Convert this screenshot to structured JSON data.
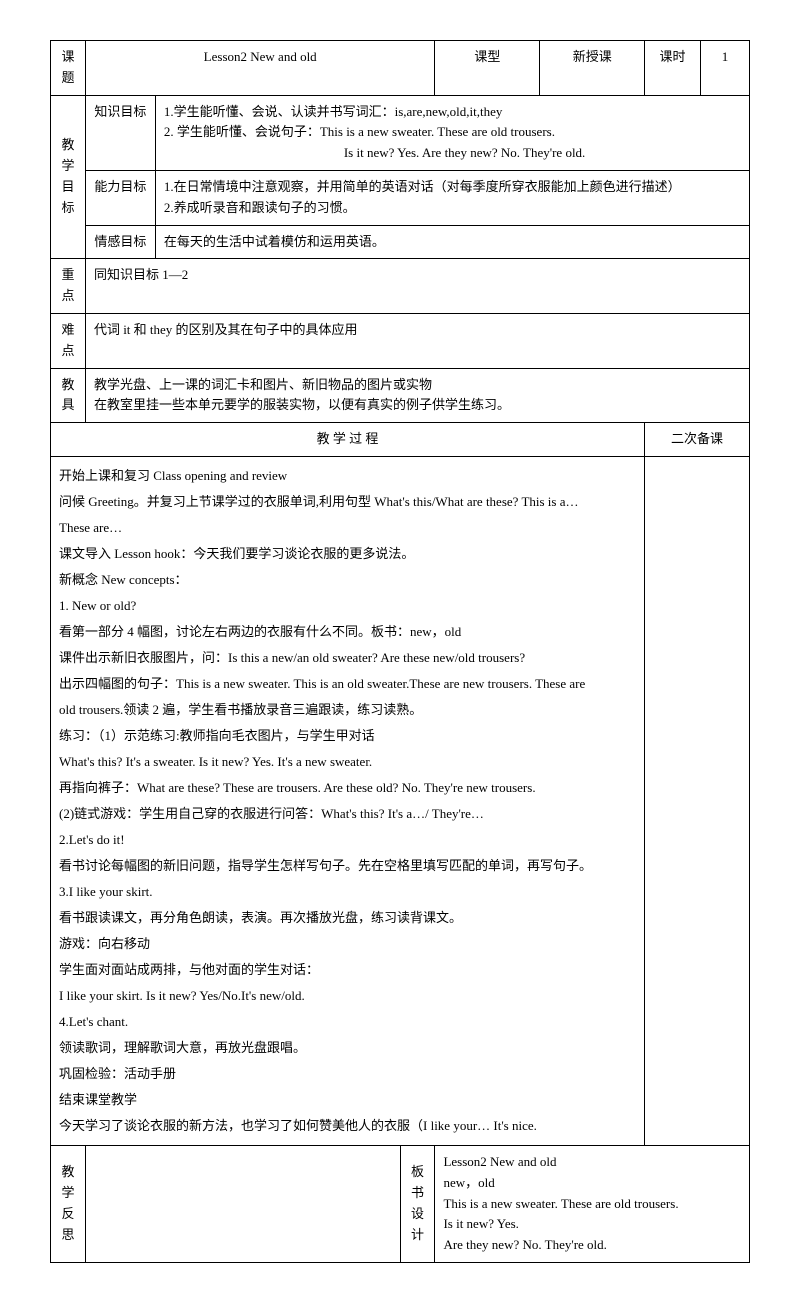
{
  "header": {
    "keti_label": "课题",
    "keti_value": "Lesson2 New and old",
    "kexing_label": "课型",
    "kexing_value": "新授课",
    "keshi_label": "课时",
    "keshi_value": "1"
  },
  "objectives": {
    "section_label": "教学目标",
    "knowledge_label": "知识目标",
    "knowledge_line1": "1.学生能听懂、会说、认读并书写词汇：is,are,new,old,it,they",
    "knowledge_line2": "2. 学生能听懂、会说句子：This is a new sweater. These are old trousers.",
    "knowledge_line3": "Is it new? Yes.   Are they new? No. They're old.",
    "ability_label": "能力目标",
    "ability_line1": "1.在日常情境中注意观察，并用简单的英语对话（对每季度所穿衣服能加上颜色进行描述）",
    "ability_line2": "2.养成听录音和跟读句子的习惯。",
    "emotion_label": "情感目标",
    "emotion_value": "在每天的生活中试着模仿和运用英语。"
  },
  "keypoints": {
    "zhongdian_label": "重点",
    "zhongdian_value": "同知识目标 1—2",
    "nandian_label": "难点",
    "nandian_value": "代词 it 和 they 的区别及其在句子中的具体应用",
    "jiaoju_label": "教具",
    "jiaoju_line1": "教学光盘、上一课的词汇卡和图片、新旧物品的图片或实物",
    "jiaoju_line2": "在教室里挂一些本单元要学的服装实物，以便有真实的例子供学生练习。"
  },
  "process": {
    "title": "教   学   过   程",
    "secondary_label": "二次备课",
    "lines": [
      "开始上课和复习 Class opening and review",
      "问候 Greeting。并复习上节课学过的衣服单词,利用句型 What's this/What are these? This is a…",
      "These are…",
      "课文导入 Lesson hook：今天我们要学习谈论衣服的更多说法。",
      "新概念 New concepts：",
      "1. New or old?",
      "看第一部分 4 幅图，讨论左右两边的衣服有什么不同。板书：new，old",
      "课件出示新旧衣服图片，问：Is this a new/an old sweater?   Are these new/old trousers?",
      "出示四幅图的句子：This is a new sweater. This is an old sweater.These are new trousers. These are",
      "old trousers.领读 2 遍，学生看书播放录音三遍跟读，练习读熟。",
      "练习：（1）示范练习:教师指向毛衣图片，与学生甲对话",
      "What's this? It's a sweater. Is it new? Yes. It's a new sweater.",
      "再指向裤子：What are these? These are trousers. Are these old? No. They're new trousers.",
      "(2)链式游戏：学生用自己穿的衣服进行问答：What's this? It's a…/ They're…",
      "2.Let's do it!",
      "看书讨论每幅图的新旧问题，指导学生怎样写句子。先在空格里填写匹配的单词，再写句子。",
      "3.I like your skirt.",
      "看书跟读课文，再分角色朗读，表演。再次播放光盘，练习读背课文。",
      "游戏：向右移动",
      "学生面对面站成两排，与他对面的学生对话：",
      "I like your skirt. Is it new? Yes/No.It's new/old.",
      "4.Let's chant.",
      "领读歌词，理解歌词大意，再放光盘跟唱。",
      "巩固检验：活动手册",
      "结束课堂教学",
      "今天学习了谈论衣服的新方法，也学习了如何赞美他人的衣服（I like your… It's nice."
    ]
  },
  "footer": {
    "fansi_label": "教学反思",
    "banshu_label": "板书设计",
    "banshu_line1": "Lesson2 New and old",
    "banshu_line2": "new，old",
    "banshu_line3": "This is a new sweater. These are old trousers.",
    "banshu_line4": " Is it new? Yes.",
    "banshu_line5": "Are they new? No. They're old."
  }
}
